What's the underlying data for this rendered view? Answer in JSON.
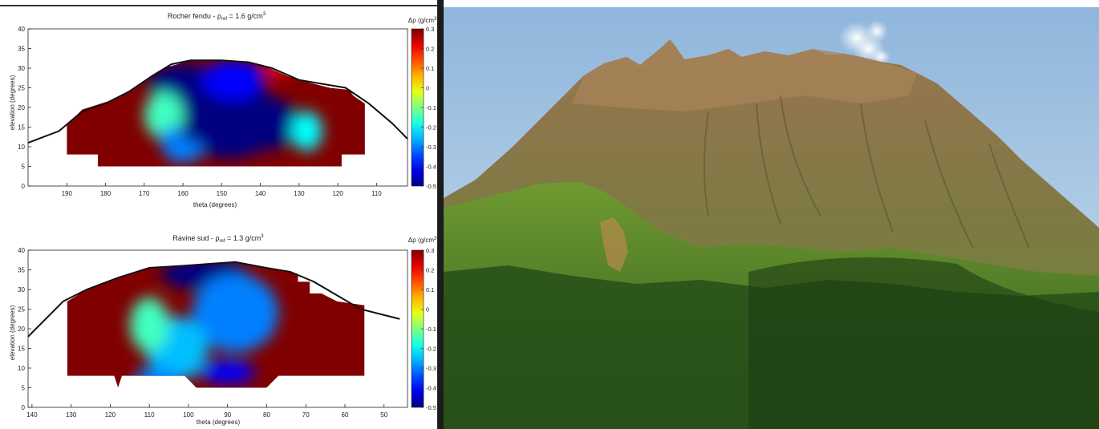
{
  "chart_data": [
    {
      "type": "heatmap",
      "title": "Rocher fendu - ρ",
      "title_sub": "ref",
      "title_value": " = 1.6 g/cm",
      "title_sup": "3",
      "xlabel": "theta (degrees)",
      "ylabel": "elevation (degrees)",
      "xlim": [
        200,
        102
      ],
      "ylim": [
        0,
        40
      ],
      "x_ticks": [
        190,
        180,
        170,
        160,
        150,
        140,
        130,
        120,
        110
      ],
      "y_ticks": [
        0,
        5,
        10,
        15,
        20,
        25,
        30,
        35,
        40
      ],
      "colorbar": {
        "label": "Δρ (g/cm",
        "label_sup": "3",
        "label_close": ")",
        "range": [
          -0.5,
          0.3
        ],
        "ticks": [
          0.3,
          0.2,
          0.1,
          0,
          -0.1,
          -0.2,
          -0.3,
          -0.4,
          -0.5
        ],
        "tick_labels": [
          "0.3",
          "0.2",
          "0.1",
          "0",
          "-0.1",
          "-0.2",
          "-0.3",
          "-0.4",
          "-0.5"
        ]
      },
      "profile": [
        [
          200,
          11
        ],
        [
          192,
          14
        ],
        [
          186,
          19
        ],
        [
          180,
          21
        ],
        [
          174,
          24
        ],
        [
          168,
          28
        ],
        [
          163,
          31
        ],
        [
          158,
          32
        ],
        [
          150,
          32
        ],
        [
          143,
          31.5
        ],
        [
          137,
          30
        ],
        [
          130,
          27
        ],
        [
          124,
          26
        ],
        [
          118,
          25
        ],
        [
          112,
          21
        ],
        [
          106,
          16
        ],
        [
          102,
          12
        ]
      ],
      "coverage": [
        [
          190,
          15.5
        ],
        [
          186,
          19.5
        ],
        [
          178,
          22
        ],
        [
          174,
          24
        ],
        [
          168,
          28
        ],
        [
          165,
          30
        ],
        [
          158,
          32
        ],
        [
          148,
          32
        ],
        [
          140,
          31
        ],
        [
          133,
          28
        ],
        [
          128,
          26.5
        ],
        [
          122,
          25
        ],
        [
          117,
          24.5
        ],
        [
          116,
          23
        ],
        [
          113,
          21
        ],
        [
          113,
          8
        ],
        [
          119,
          8
        ],
        [
          119,
          5
        ],
        [
          182,
          5
        ],
        [
          182,
          8
        ],
        [
          190,
          8
        ]
      ],
      "anomalies": [
        {
          "theta": 148,
          "elev": 17,
          "dr": -0.5,
          "rt": 13,
          "re": 10
        },
        {
          "theta": 160,
          "elev": 26,
          "dr": -0.5,
          "rt": 9,
          "re": 5
        },
        {
          "theta": 147,
          "elev": 27,
          "dr": -0.4,
          "rt": 8,
          "re": 5
        },
        {
          "theta": 140,
          "elev": 16,
          "dr": -0.5,
          "rt": 10,
          "re": 7
        },
        {
          "theta": 160,
          "elev": 9,
          "dr": -0.3,
          "rt": 5,
          "re": 3
        },
        {
          "theta": 135,
          "elev": 30,
          "dr": 0.2,
          "rt": 3.5,
          "re": 2
        },
        {
          "theta": 128,
          "elev": 14,
          "dr": -0.2,
          "rt": 4,
          "re": 5
        },
        {
          "theta": 165,
          "elev": 18,
          "dr": -0.15,
          "rt": 5,
          "re": 6
        },
        {
          "theta": 163,
          "elev": 12,
          "dr": -0.3,
          "rt": 3,
          "re": 3
        }
      ]
    },
    {
      "type": "heatmap",
      "title": "Ravine sud - ρ",
      "title_sub": "ref",
      "title_value": " = 1.3 g/cm",
      "title_sup": "3",
      "xlabel": "theta (degrees)",
      "ylabel": "elevation (degrees)",
      "xlim": [
        141,
        44
      ],
      "ylim": [
        0,
        40
      ],
      "x_ticks": [
        140,
        130,
        120,
        110,
        100,
        90,
        80,
        70,
        60,
        50
      ],
      "y_ticks": [
        0,
        5,
        10,
        15,
        20,
        25,
        30,
        35,
        40
      ],
      "colorbar": {
        "label": "Δρ (g/cm",
        "label_sup": "3",
        "label_close": ")",
        "range": [
          -0.5,
          0.3
        ],
        "ticks": [
          0.3,
          0.2,
          0.1,
          0,
          -0.1,
          -0.2,
          -0.3,
          -0.4,
          -0.5
        ],
        "tick_labels": [
          "0.3",
          "0.2",
          "0.1",
          "0",
          "-0.1",
          "-0.2",
          "-0.3",
          "-0.4",
          "-0.5"
        ]
      },
      "profile": [
        [
          141,
          18
        ],
        [
          136,
          23
        ],
        [
          132,
          27
        ],
        [
          126,
          30
        ],
        [
          118,
          33
        ],
        [
          110,
          35.5
        ],
        [
          102,
          36
        ],
        [
          95,
          36.5
        ],
        [
          88,
          37
        ],
        [
          80,
          35.5
        ],
        [
          74,
          34.5
        ],
        [
          68,
          32
        ],
        [
          62,
          28.5
        ],
        [
          56,
          25
        ],
        [
          50,
          23.5
        ],
        [
          46,
          22.5
        ]
      ],
      "coverage": [
        [
          131,
          8
        ],
        [
          131,
          27
        ],
        [
          126,
          30
        ],
        [
          118,
          33
        ],
        [
          110,
          35.5
        ],
        [
          102,
          36
        ],
        [
          95,
          36.5
        ],
        [
          88,
          37
        ],
        [
          80,
          35.5
        ],
        [
          74,
          34.5
        ],
        [
          72,
          34
        ],
        [
          72,
          32
        ],
        [
          69,
          32
        ],
        [
          69,
          29
        ],
        [
          66,
          29
        ],
        [
          62,
          27
        ],
        [
          55,
          26
        ],
        [
          55,
          8
        ],
        [
          77,
          8
        ],
        [
          80,
          5
        ],
        [
          98,
          5
        ],
        [
          101,
          8
        ],
        [
          117,
          8
        ],
        [
          118,
          5
        ],
        [
          119,
          8
        ]
      ],
      "anomalies": [
        {
          "theta": 96,
          "elev": 34,
          "dr": -0.5,
          "rt": 11,
          "re": 4
        },
        {
          "theta": 88,
          "elev": 24,
          "dr": -0.3,
          "rt": 11,
          "re": 10
        },
        {
          "theta": 103,
          "elev": 15,
          "dr": -0.25,
          "rt": 8,
          "re": 8
        },
        {
          "theta": 110,
          "elev": 21,
          "dr": -0.15,
          "rt": 5,
          "re": 7
        },
        {
          "theta": 90,
          "elev": 9,
          "dr": -0.4,
          "rt": 7,
          "re": 3
        },
        {
          "theta": 108,
          "elev": 7,
          "dr": -0.3,
          "rt": 6,
          "re": 3
        }
      ]
    }
  ],
  "photo": {
    "subject": "volcano",
    "sky_color": "#a8c8e6",
    "vegetation_color": "#4a7a2a",
    "summit_color": "#8a6a44"
  }
}
